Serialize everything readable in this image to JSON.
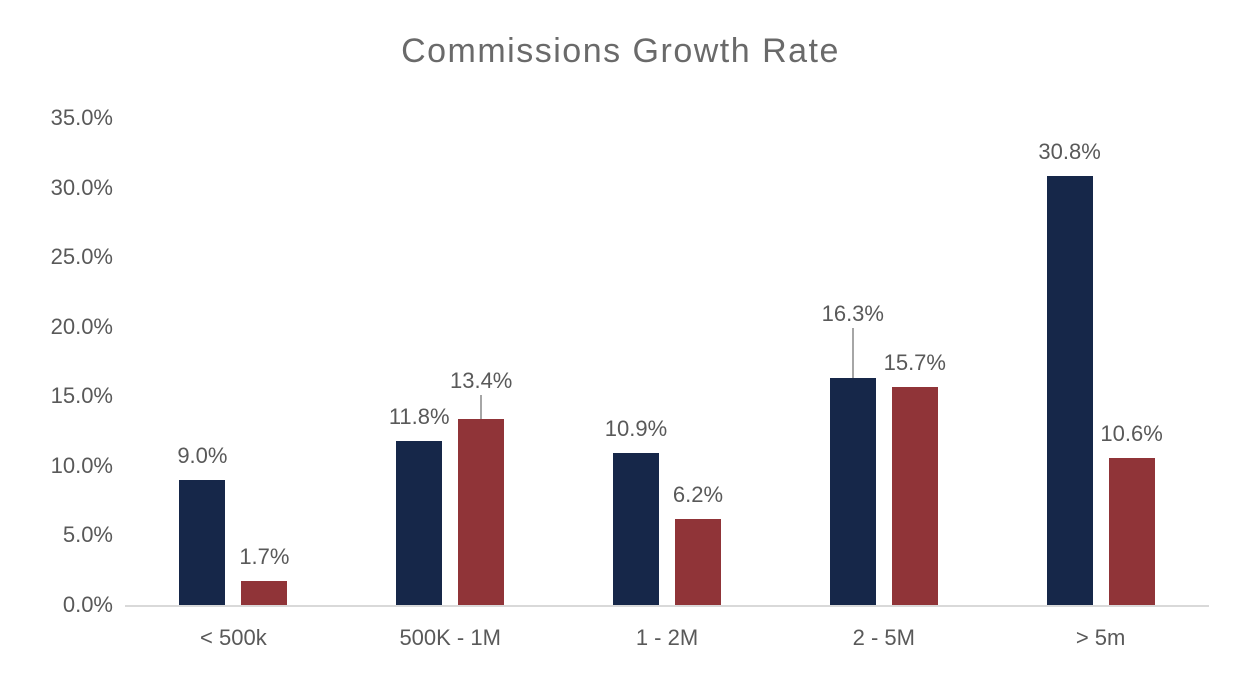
{
  "chart_data": {
    "type": "bar",
    "title": "Commissions Growth Rate",
    "categories": [
      "< 500k",
      "500K - 1M",
      "1 - 2M",
      "2 - 5M",
      "> 5m"
    ],
    "series": [
      {
        "name": "dark-navy-series",
        "color": "#162749",
        "values": [
          9.0,
          11.8,
          10.9,
          16.3,
          30.8
        ],
        "labels": [
          "9.0%",
          "11.8%",
          "10.9%",
          "16.3%",
          "30.8%"
        ]
      },
      {
        "name": "dark-red-series",
        "color": "#903438",
        "values": [
          1.7,
          13.4,
          6.2,
          15.7,
          10.6
        ],
        "labels": [
          "1.7%",
          "13.4%",
          "6.2%",
          "15.7%",
          "10.6%"
        ]
      }
    ],
    "y_axis": {
      "min": 0,
      "max": 35,
      "step": 5,
      "ticks": [
        "35.0%",
        "30.0%",
        "25.0%",
        "20.0%",
        "15.0%",
        "10.0%",
        "5.0%",
        "0.0%"
      ]
    },
    "legend": "none",
    "gridlines": false,
    "colors": {
      "axis_line": "#d9d9d9",
      "tick_label": "#595959",
      "data_label": "#595959",
      "title": "#6a6a6a",
      "leader_line": "#a6a6a6"
    },
    "label_raises": [
      {
        "series": 0,
        "index": 3,
        "raise": 40
      },
      {
        "series": 1,
        "index": 1,
        "raise": 14
      }
    ]
  }
}
